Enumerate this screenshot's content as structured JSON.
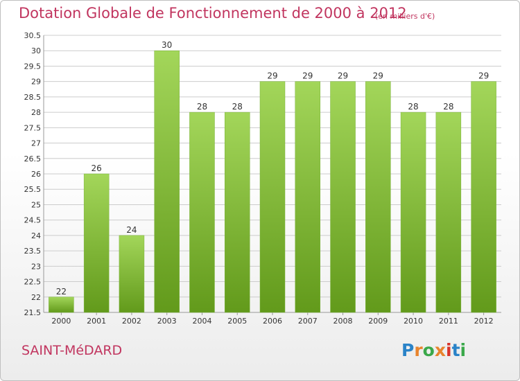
{
  "title": "Dotation Globale de Fonctionnement de 2000 à 2012",
  "unit_note": "(en milliers d'€)",
  "place_name": "SAINT-MéDARD",
  "logo": {
    "text": "Proxiti",
    "letter_colors": [
      "#2a83c8",
      "#e8842d",
      "#3aa84a",
      "#e8842d",
      "#d9342b",
      "#2a83c8",
      "#3aa84a"
    ]
  },
  "colors": {
    "title": "#c1355f",
    "bar_light": "#a3d65a",
    "bar_dark": "#629a1b",
    "grid": "#cccccc",
    "axis_text": "#333333"
  },
  "chart_data": {
    "type": "bar",
    "title": "Dotation Globale de Fonctionnement de 2000 à 2012",
    "categories": [
      "2000",
      "2001",
      "2002",
      "2003",
      "2004",
      "2005",
      "2006",
      "2007",
      "2008",
      "2009",
      "2010",
      "2011",
      "2012"
    ],
    "values": [
      22,
      26,
      24,
      30,
      28,
      28,
      29,
      29,
      29,
      29,
      28,
      28,
      29
    ],
    "value_labels": [
      "22",
      "26",
      "24",
      "30",
      "28",
      "28",
      "29",
      "29",
      "29",
      "29",
      "28",
      "28",
      "29"
    ],
    "ylim": [
      21.5,
      30.5
    ],
    "yticks": [
      21.5,
      22,
      22.5,
      23,
      23.5,
      24,
      24.5,
      25,
      25.5,
      26,
      26.5,
      27,
      27.5,
      28,
      28.5,
      29,
      29.5,
      30,
      30.5
    ],
    "ytick_labels": [
      "21.5",
      "22",
      "22.5",
      "23",
      "23.5",
      "24",
      "24.5",
      "25",
      "25.5",
      "26",
      "26.5",
      "27",
      "27.5",
      "28",
      "28.5",
      "29",
      "29.5",
      "30",
      "30.5"
    ],
    "grid": true,
    "xlabel": "",
    "ylabel": ""
  }
}
